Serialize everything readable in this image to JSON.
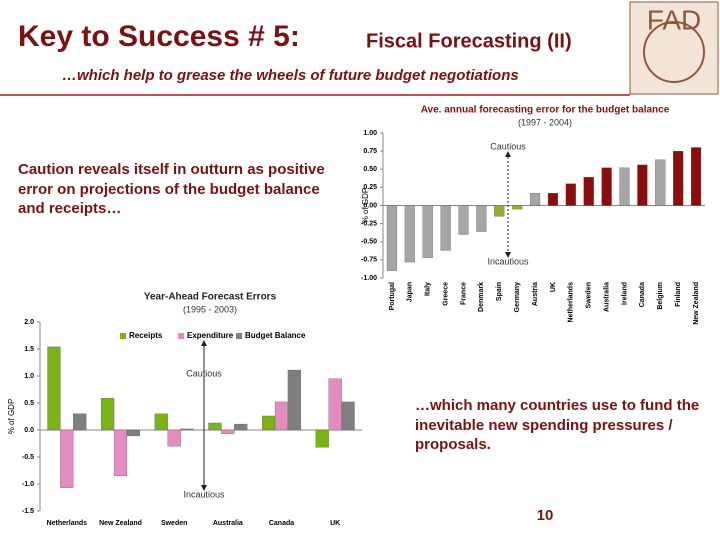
{
  "slide": {
    "title": "Key to Success # 5:",
    "title_rest": "Fiscal Forecasting (II)",
    "subtitle": "…which help to grease the wheels of future budget negotiations",
    "logo": "FAD",
    "left_text": "Caution reveals itself in outturn as positive error on projections of the budget balance and receipts…",
    "right_text": "…which many countries use to fund the inevitable new spending pressures / proposals.",
    "page_number": "10"
  },
  "chart_data": [
    {
      "type": "bar",
      "title": "Ave. annual forecasting error for the budget balance",
      "subtitle": "(1997 - 2004)",
      "y_label": "% of GDP",
      "annotations": [
        "Cautious",
        "Incautious"
      ],
      "categories": [
        "Portugal",
        "Japan",
        "Italy",
        "Greece",
        "France",
        "Denmark",
        "Spain",
        "Germany",
        "Austria",
        "UK",
        "Netherlands",
        "Sweden",
        "Australia",
        "Ireland",
        "Canada",
        "Belgium",
        "Finland",
        "New Zealand"
      ],
      "values": [
        -0.9,
        -0.78,
        -0.72,
        -0.62,
        -0.4,
        -0.36,
        -0.15,
        -0.05,
        0.17,
        0.17,
        0.3,
        0.39,
        0.52,
        0.52,
        0.56,
        0.63,
        0.75,
        0.8
      ],
      "colors": [
        "#a6a6a6",
        "#a6a6a6",
        "#a6a6a6",
        "#a6a6a6",
        "#a6a6a6",
        "#a6a6a6",
        "#9bab2f",
        "#9bab2f",
        "#a6a6a6",
        "#8b0e0e",
        "#8b0e0e",
        "#8b0e0e",
        "#8b0e0e",
        "#a6a6a6",
        "#8b0e0e",
        "#a6a6a6",
        "#8b0e0e",
        "#8b0e0e"
      ],
      "ylim": [
        -1,
        1
      ],
      "yticks": [
        {
          "value": 1,
          "label": "1.00"
        },
        {
          "value": 0.75,
          "label": "0.75"
        },
        {
          "value": 0.5,
          "label": "0.50"
        },
        {
          "value": 0.25,
          "label": "0.25"
        },
        {
          "value": 0,
          "label": "0.00"
        },
        {
          "value": -0.25,
          "label": "-0.25"
        },
        {
          "value": -0.5,
          "label": "-0.50"
        },
        {
          "value": -0.75,
          "label": "-0.75"
        },
        {
          "value": -1,
          "label": "-1.00"
        }
      ],
      "grid": false
    },
    {
      "type": "grouped-bar",
      "title": "Year-Ahead Forecast Errors",
      "subtitle": "(1995 - 2003)",
      "y_label": "% of GDP",
      "annotations": [
        "Cautious",
        "Incautious"
      ],
      "categories": [
        "Netherlands",
        "New Zealand",
        "Sweden",
        "Australia",
        "Canada",
        "UK"
      ],
      "series": [
        {
          "name": "Receipts",
          "color": "#7ab317",
          "values": [
            1.54,
            0.59,
            0.3,
            0.13,
            0.26,
            -0.32
          ]
        },
        {
          "name": "Expenditure",
          "color": "#e48cbf",
          "values": [
            -1.07,
            -0.85,
            -0.3,
            -0.07,
            0.52,
            0.95
          ]
        },
        {
          "name": "Budget Balance",
          "color": "#7f7f7f",
          "values": [
            0.3,
            -0.11,
            0.02,
            0.11,
            1.11,
            0.52
          ]
        }
      ],
      "ylim": [
        -1.5,
        2
      ],
      "yticks": [
        {
          "value": 2,
          "label": "2.0"
        },
        1.5,
        {
          "value": 1,
          "label": "1.0"
        },
        0.5,
        {
          "value": 0,
          "label": "0.0"
        },
        -0.5,
        {
          "value": -1,
          "label": "-1.0"
        },
        -1.5
      ],
      "grid": false
    }
  ]
}
